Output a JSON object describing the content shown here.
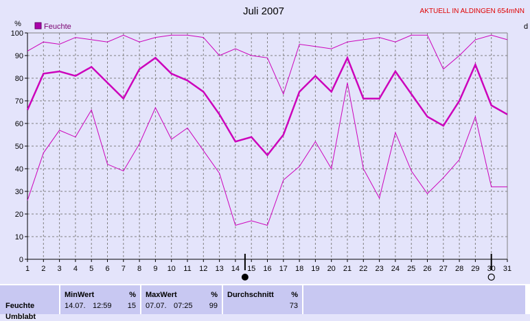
{
  "title": "Juli 2007",
  "banner": "AKTUELL IN ALDINGEN 654mNN",
  "y_unit": "%",
  "right_edge_label": "d",
  "legend_label": "Feuchte",
  "colors": {
    "series": "#cc00bb",
    "legend_box": "#aa00aa",
    "banner": "#e00000",
    "grid": "#808080"
  },
  "chart_data": {
    "type": "line",
    "title": "Juli 2007",
    "ylabel": "%",
    "ylim": [
      0,
      100
    ],
    "xlim": [
      1,
      31
    ],
    "yticks": [
      0,
      10,
      20,
      30,
      40,
      50,
      60,
      70,
      80,
      90,
      100
    ],
    "x": [
      1,
      2,
      3,
      4,
      5,
      6,
      7,
      8,
      9,
      10,
      11,
      12,
      13,
      14,
      15,
      16,
      17,
      18,
      19,
      20,
      21,
      22,
      23,
      24,
      25,
      26,
      27,
      28,
      29,
      30,
      31
    ],
    "series": [
      {
        "name": "Feuchte",
        "role": "max",
        "values": [
          92,
          96,
          95,
          98,
          97,
          96,
          99,
          96,
          98,
          99,
          99,
          98,
          90,
          93,
          90,
          89,
          73,
          95,
          94,
          93,
          96,
          97,
          98,
          96,
          99,
          99,
          84,
          90,
          97,
          99,
          97
        ]
      },
      {
        "name": "Feuchte",
        "role": "avg",
        "values": [
          66,
          82,
          83,
          81,
          85,
          78,
          71,
          84,
          89,
          82,
          79,
          74,
          64,
          52,
          54,
          46,
          55,
          74,
          81,
          74,
          89,
          71,
          71,
          83,
          73,
          63,
          59,
          70,
          86,
          68,
          64
        ]
      },
      {
        "name": "Feuchte",
        "role": "min",
        "values": [
          26,
          47,
          57,
          54,
          66,
          42,
          39,
          51,
          67,
          53,
          58,
          48,
          38,
          15,
          17,
          15,
          35,
          41,
          52,
          40,
          78,
          40,
          27,
          56,
          39,
          29,
          36,
          44,
          63,
          32,
          32
        ]
      }
    ],
    "markers": [
      {
        "day": 14.6,
        "type": "new-moon"
      },
      {
        "day": 30,
        "type": "full-moon"
      }
    ],
    "grid": true
  },
  "stats": {
    "min_label": "MinWert",
    "max_label": "MaxWert",
    "avg_label": "Durchschnitt",
    "unit": "%",
    "row_label": "Feuchte",
    "row2_label": "Umblabt",
    "min_date": "14.07.",
    "min_time": "12:59",
    "min_value": "15",
    "max_date": "07.07.",
    "max_time": "07:25",
    "max_value": "99",
    "avg_value": "73"
  }
}
